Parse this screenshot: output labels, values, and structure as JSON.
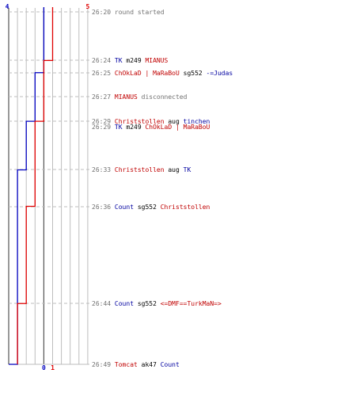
{
  "colors": {
    "blue": "#0000c0",
    "red": "#e00000",
    "grid": "#bdbdbd",
    "dash": "#bdbdbd",
    "frame": "#555555",
    "timestamp": "#707070",
    "blueText": "#0000a0",
    "redText": "#c00000"
  },
  "scores": {
    "blue_start": "4",
    "red_start": "5",
    "blue_end": "0",
    "red_end": "1"
  },
  "chart_data": {
    "type": "line",
    "x_unit": "players",
    "y_unit": "time",
    "time_range": [
      "26:20",
      "26:49"
    ],
    "series": [
      {
        "team": "blue",
        "steps": [
          {
            "time": "26:20",
            "players": 4
          },
          {
            "time": "26:25",
            "players": 3
          },
          {
            "time": "26:29",
            "players": 2
          },
          {
            "time": "26:33",
            "players": 1
          },
          {
            "time": "26:49",
            "players": 0
          }
        ]
      },
      {
        "team": "red",
        "steps": [
          {
            "time": "26:20",
            "players": 5
          },
          {
            "time": "26:24",
            "players": 4
          },
          {
            "time": "26:29",
            "players": 3
          },
          {
            "time": "26:36",
            "players": 2
          },
          {
            "time": "26:44",
            "players": 1
          }
        ]
      }
    ]
  },
  "events": [
    {
      "time": "26:20",
      "segments": [
        {
          "text": "round started",
          "c": "msg"
        }
      ]
    },
    {
      "time": "26:24",
      "segments": [
        {
          "text": "TK",
          "c": "blue"
        },
        {
          "text": " m249 ",
          "c": "plain"
        },
        {
          "text": "MIANUS",
          "c": "red"
        }
      ]
    },
    {
      "time": "26:25",
      "segments": [
        {
          "text": "ChOkLaD | MaRaBoU",
          "c": "red"
        },
        {
          "text": " sg552 ",
          "c": "plain"
        },
        {
          "text": "-=Judas",
          "c": "blue"
        }
      ]
    },
    {
      "time": "26:27",
      "segments": [
        {
          "text": "MIANUS",
          "c": "red"
        },
        {
          "text": " disconnected",
          "c": "msg"
        }
      ]
    },
    {
      "time": "26:29",
      "segments": [
        {
          "text": "Christstollen",
          "c": "red"
        },
        {
          "text": " aug ",
          "c": "plain"
        },
        {
          "text": "tinchen",
          "c": "blue"
        }
      ]
    },
    {
      "time": "26:29",
      "segments": [
        {
          "text": "TK",
          "c": "blue"
        },
        {
          "text": " m249 ",
          "c": "plain"
        },
        {
          "text": "ChOkLaD | MaRaBoU",
          "c": "red"
        }
      ]
    },
    {
      "time": "26:33",
      "segments": [
        {
          "text": "Christstollen",
          "c": "red"
        },
        {
          "text": " aug ",
          "c": "plain"
        },
        {
          "text": "TK",
          "c": "blue"
        }
      ]
    },
    {
      "time": "26:36",
      "segments": [
        {
          "text": "Count",
          "c": "blue"
        },
        {
          "text": " sg552 ",
          "c": "plain"
        },
        {
          "text": "Christstollen",
          "c": "red"
        }
      ]
    },
    {
      "time": "26:44",
      "segments": [
        {
          "text": "Count",
          "c": "blue"
        },
        {
          "text": " sg552 ",
          "c": "plain"
        },
        {
          "text": "<=DMF==TurkMaN=>",
          "c": "red"
        }
      ]
    },
    {
      "time": "26:49",
      "segments": [
        {
          "text": "Tomcat",
          "c": "red"
        },
        {
          "text": " ak47 ",
          "c": "plain"
        },
        {
          "text": "Count",
          "c": "blue"
        }
      ]
    }
  ]
}
